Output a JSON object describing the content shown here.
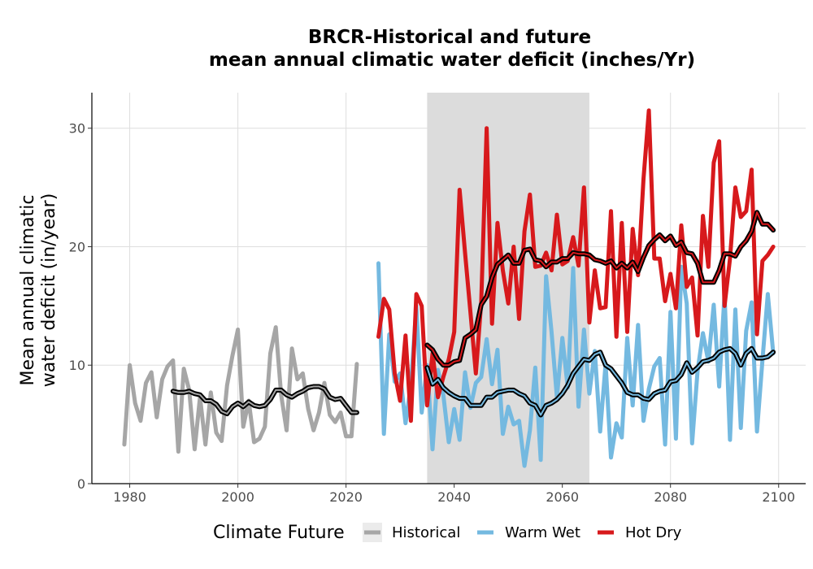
{
  "chart_data": {
    "type": "line",
    "title_line1": "BRCR-Historical and future",
    "title_line2": "mean annual climatic water deficit (inches/Yr)",
    "xlabel": "",
    "ylabel_line1": "Mean annual climatic",
    "ylabel_line2": "water deficit (in/year)",
    "xlim": [
      1973,
      2105
    ],
    "ylim": [
      0,
      33
    ],
    "x_ticks": [
      1980,
      2000,
      2020,
      2040,
      2060,
      2080,
      2100
    ],
    "x_tick_labels": [
      "1980",
      "2000",
      "2020",
      "2040",
      "2060",
      "2080",
      "2100"
    ],
    "y_ticks": [
      0,
      10,
      20,
      30
    ],
    "y_tick_labels": [
      "0",
      "10",
      "20",
      "30"
    ],
    "shaded_period": [
      2035,
      2065
    ],
    "grid": true,
    "legend": {
      "title": "Climate Future",
      "placement": "bottom",
      "entries": [
        "Historical",
        "Warm Wet",
        "Hot Dry"
      ]
    },
    "series": [
      {
        "name": "Historical",
        "color": "#a6a6a6",
        "x": [
          1979,
          1980,
          1981,
          1982,
          1983,
          1984,
          1985,
          1986,
          1987,
          1988,
          1989,
          1990,
          1991,
          1992,
          1993,
          1994,
          1995,
          1996,
          1997,
          1998,
          1999,
          2000,
          2001,
          2002,
          2003,
          2004,
          2005,
          2006,
          2007,
          2008,
          2009,
          2010,
          2011,
          2012,
          2013,
          2014,
          2015,
          2016,
          2017,
          2018,
          2019,
          2020,
          2021,
          2022
        ],
        "y": [
          3.3,
          10.0,
          6.8,
          5.3,
          8.5,
          9.4,
          5.6,
          8.8,
          9.9,
          10.4,
          2.7,
          9.7,
          7.9,
          2.9,
          7.3,
          3.3,
          7.7,
          4.3,
          3.6,
          8.3,
          10.8,
          13.0,
          4.8,
          7.0,
          3.5,
          3.8,
          4.8,
          11.0,
          13.2,
          7.5,
          4.5,
          11.4,
          8.8,
          9.3,
          6.3,
          4.5,
          6.0,
          8.5,
          5.8,
          5.2,
          6.0,
          4.0,
          4.0,
          10.1
        ]
      },
      {
        "name": "Historical (running mean)",
        "color": "#000000",
        "x": [
          1988,
          1989,
          1990,
          1991,
          1992,
          1993,
          1994,
          1995,
          1996,
          1997,
          1998,
          1999,
          2000,
          2001,
          2002,
          2003,
          2004,
          2005,
          2006,
          2007,
          2008,
          2009,
          2010,
          2011,
          2012,
          2013,
          2014,
          2015,
          2016,
          2017,
          2018,
          2019,
          2020,
          2021,
          2022
        ],
        "y": [
          7.8,
          7.7,
          7.7,
          7.8,
          7.6,
          7.5,
          7.0,
          7.0,
          6.7,
          6.1,
          5.9,
          6.5,
          6.8,
          6.5,
          6.9,
          6.6,
          6.5,
          6.6,
          7.1,
          7.9,
          7.9,
          7.5,
          7.3,
          7.6,
          7.8,
          8.1,
          8.2,
          8.2,
          8.0,
          7.3,
          7.1,
          7.2,
          6.6,
          6.0,
          6.0
        ]
      },
      {
        "name": "Warm Wet",
        "color": "#74b9e0",
        "x": [
          2026,
          2027,
          2028,
          2029,
          2030,
          2031,
          2032,
          2033,
          2034,
          2035,
          2036,
          2037,
          2038,
          2039,
          2040,
          2041,
          2042,
          2043,
          2044,
          2045,
          2046,
          2047,
          2048,
          2049,
          2050,
          2051,
          2052,
          2053,
          2054,
          2055,
          2056,
          2057,
          2058,
          2059,
          2060,
          2061,
          2062,
          2063,
          2064,
          2065,
          2066,
          2067,
          2068,
          2069,
          2070,
          2071,
          2072,
          2073,
          2074,
          2075,
          2076,
          2077,
          2078,
          2079,
          2080,
          2081,
          2082,
          2083,
          2084,
          2085,
          2086,
          2087,
          2088,
          2089,
          2090,
          2091,
          2092,
          2093,
          2094,
          2095,
          2096,
          2097,
          2098,
          2099
        ],
        "y": [
          18.6,
          4.2,
          12.6,
          8.6,
          9.3,
          5.1,
          8.3,
          15.0,
          6.0,
          10.0,
          2.9,
          9.6,
          7.5,
          3.5,
          6.3,
          3.7,
          9.4,
          6.4,
          8.5,
          9.0,
          12.2,
          8.4,
          11.3,
          4.2,
          6.5,
          5.0,
          5.3,
          1.5,
          4.5,
          9.8,
          2.0,
          17.5,
          12.8,
          7.3,
          12.3,
          8.1,
          18.2,
          6.5,
          13.0,
          7.6,
          11.2,
          4.4,
          10.1,
          2.2,
          5.1,
          3.9,
          12.3,
          6.6,
          13.4,
          5.3,
          8.0,
          9.9,
          10.6,
          3.3,
          14.5,
          3.8,
          18.3,
          15.2,
          3.4,
          9.5,
          12.7,
          10.3,
          15.1,
          8.2,
          16.0,
          3.7,
          14.7,
          4.7,
          12.9,
          15.3,
          4.4,
          10.4,
          16.0,
          11.0
        ]
      },
      {
        "name": "Warm Wet (running mean)",
        "color": "#000000",
        "x": [
          2035,
          2036,
          2037,
          2038,
          2039,
          2040,
          2041,
          2042,
          2043,
          2044,
          2045,
          2046,
          2047,
          2048,
          2049,
          2050,
          2051,
          2052,
          2053,
          2054,
          2055,
          2056,
          2057,
          2058,
          2059,
          2060,
          2061,
          2062,
          2063,
          2064,
          2065,
          2066,
          2067,
          2068,
          2069,
          2070,
          2071,
          2072,
          2073,
          2074,
          2075,
          2076,
          2077,
          2078,
          2079,
          2080,
          2081,
          2082,
          2083,
          2084,
          2085,
          2086,
          2087,
          2088,
          2089,
          2090,
          2091,
          2092,
          2093,
          2094,
          2095,
          2096,
          2097,
          2098,
          2099
        ],
        "y": [
          9.8,
          8.4,
          8.8,
          8.1,
          7.7,
          7.4,
          7.2,
          7.2,
          6.6,
          6.6,
          6.6,
          7.3,
          7.3,
          7.7,
          7.8,
          7.9,
          7.9,
          7.6,
          7.4,
          6.8,
          6.6,
          5.8,
          6.6,
          6.8,
          7.1,
          7.6,
          8.3,
          9.3,
          9.9,
          10.5,
          10.4,
          10.9,
          11.1,
          10.0,
          9.7,
          9.1,
          8.5,
          7.7,
          7.5,
          7.5,
          7.2,
          7.1,
          7.6,
          7.8,
          7.9,
          8.6,
          8.7,
          9.2,
          10.2,
          9.4,
          9.8,
          10.3,
          10.4,
          10.6,
          11.1,
          11.3,
          11.4,
          11.0,
          10.0,
          11.0,
          11.4,
          10.6,
          10.6,
          10.7,
          11.1
        ]
      },
      {
        "name": "Hot Dry",
        "color": "#d7191c",
        "x": [
          2026,
          2027,
          2028,
          2029,
          2030,
          2031,
          2032,
          2033,
          2034,
          2035,
          2036,
          2037,
          2038,
          2039,
          2040,
          2041,
          2042,
          2043,
          2044,
          2045,
          2046,
          2047,
          2048,
          2049,
          2050,
          2051,
          2052,
          2053,
          2054,
          2055,
          2056,
          2057,
          2058,
          2059,
          2060,
          2061,
          2062,
          2063,
          2064,
          2065,
          2066,
          2067,
          2068,
          2069,
          2070,
          2071,
          2072,
          2073,
          2074,
          2075,
          2076,
          2077,
          2078,
          2079,
          2080,
          2081,
          2082,
          2083,
          2084,
          2085,
          2086,
          2087,
          2088,
          2089,
          2090,
          2091,
          2092,
          2093,
          2094,
          2095,
          2096,
          2097,
          2098,
          2099
        ],
        "y": [
          12.4,
          15.6,
          14.7,
          9.3,
          7.0,
          12.5,
          5.3,
          16.0,
          15.0,
          6.6,
          11.0,
          7.3,
          9.0,
          10.5,
          12.8,
          24.8,
          19.5,
          14.5,
          9.3,
          15.3,
          30.0,
          13.5,
          22.0,
          18.0,
          15.2,
          20.0,
          13.9,
          21.3,
          24.4,
          18.3,
          18.4,
          19.5,
          18.0,
          22.7,
          18.5,
          18.8,
          20.8,
          18.4,
          25.0,
          13.6,
          18.0,
          14.8,
          14.9,
          23.0,
          12.4,
          22.0,
          12.8,
          21.5,
          17.6,
          25.7,
          31.5,
          19.0,
          19.0,
          15.4,
          17.7,
          14.8,
          21.8,
          16.6,
          17.4,
          12.5,
          22.6,
          18.3,
          27.1,
          28.9,
          15.0,
          19.0,
          25.0,
          22.5,
          23.0,
          26.5,
          12.6,
          18.8,
          19.3,
          20.0
        ]
      },
      {
        "name": "Hot Dry (running mean)",
        "color": "#000000",
        "x": [
          2035,
          2036,
          2037,
          2038,
          2039,
          2040,
          2041,
          2042,
          2043,
          2044,
          2045,
          2046,
          2047,
          2048,
          2049,
          2050,
          2051,
          2052,
          2053,
          2054,
          2055,
          2056,
          2057,
          2058,
          2059,
          2060,
          2061,
          2062,
          2063,
          2064,
          2065,
          2066,
          2067,
          2068,
          2069,
          2070,
          2071,
          2072,
          2073,
          2074,
          2075,
          2076,
          2077,
          2078,
          2079,
          2080,
          2081,
          2082,
          2083,
          2084,
          2085,
          2086,
          2087,
          2088,
          2089,
          2090,
          2091,
          2092,
          2093,
          2094,
          2095,
          2096,
          2097,
          2098,
          2099
        ],
        "y": [
          11.7,
          11.3,
          10.5,
          10.0,
          10.0,
          10.3,
          10.4,
          12.3,
          12.6,
          13.0,
          15.1,
          15.8,
          17.4,
          18.5,
          18.9,
          19.3,
          18.6,
          18.6,
          19.7,
          19.8,
          18.9,
          18.8,
          18.3,
          18.7,
          18.7,
          19.0,
          19.0,
          19.5,
          19.4,
          19.4,
          19.3,
          18.9,
          18.8,
          18.6,
          18.8,
          18.2,
          18.6,
          18.2,
          18.7,
          17.9,
          19.1,
          20.1,
          20.6,
          21.0,
          20.5,
          20.9,
          20.1,
          20.4,
          19.5,
          19.4,
          18.6,
          17.0,
          17.0,
          17.0,
          18.0,
          19.4,
          19.4,
          19.2,
          20.0,
          20.5,
          21.3,
          22.9,
          21.9,
          21.9,
          21.4
        ]
      }
    ]
  }
}
